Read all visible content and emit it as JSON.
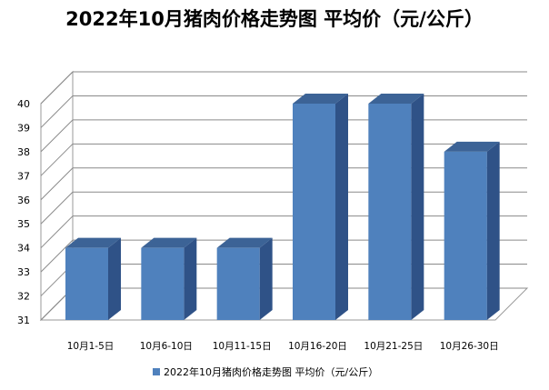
{
  "chart_data": {
    "type": "bar",
    "title": "2022年10月猪肉价格走势图 平均价（元/公斤）",
    "categories": [
      "10月1-5日",
      "10月6-10日",
      "10月11-15日",
      "10月16-20日",
      "10月21-25日",
      "10月26-30日"
    ],
    "series": [
      {
        "name": "2022年10月猪肉价格走势图 平均价（元/公斤）",
        "values": [
          34,
          34,
          34,
          40,
          40,
          38
        ],
        "color": "#4f81bd"
      }
    ],
    "yticks": [
      31,
      32,
      33,
      34,
      35,
      36,
      37,
      38,
      39,
      40
    ],
    "ylim": [
      31,
      40
    ],
    "grid": true,
    "legend": "bottom",
    "style": "3d-column"
  }
}
